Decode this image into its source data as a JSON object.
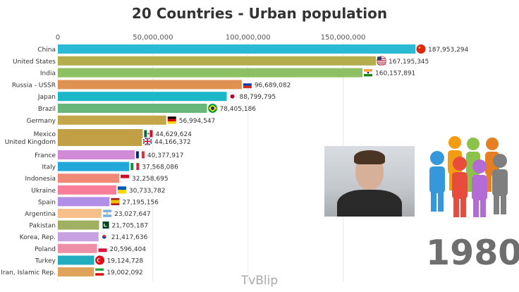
{
  "chart_data": {
    "type": "bar",
    "orientation": "horizontal",
    "title": "20 Countries - Urban population",
    "x_ticks": [
      "0",
      "50,000,000",
      "100,000,000",
      "150,000,000"
    ],
    "x_tick_values": [
      0,
      50000000,
      100000000,
      150000000
    ],
    "xlim": [
      0,
      187953294
    ],
    "grid": true,
    "categories": [
      "China",
      "United States",
      "India",
      "Russia - USSR",
      "Japan",
      "Brazil",
      "Germany",
      "Mexico",
      "United Kingdom",
      "France",
      "Italy",
      "Indonesia",
      "Ukraine",
      "Spain",
      "Argentina",
      "Pakistan",
      "Korea, Rep.",
      "Poland",
      "Turkey",
      "Iran, Islamic Rep."
    ],
    "values": [
      187953294,
      167195345,
      160157891,
      96689082,
      88799795,
      78405186,
      56994547,
      44629624,
      44166372,
      40377917,
      37568086,
      32258695,
      30733782,
      27195156,
      23027647,
      21705187,
      21417636,
      20596404,
      19124728,
      19002092
    ],
    "value_labels": [
      "187,953,294",
      "167,195,345",
      "160,157,891",
      "96,689,082",
      "88,799,795",
      "78,405,186",
      "56,994,547",
      "44,629,624",
      "44,166,372",
      "40,377,917",
      "37,568,086",
      "32,258,695",
      "30,733,782",
      "27,195,156",
      "23,027,647",
      "21,705,187",
      "21,417,636",
      "20,596,404",
      "19,124,728",
      "19,002,092"
    ],
    "colors": [
      "#2bbad3",
      "#b4ad4c",
      "#8dc063",
      "#df9151",
      "#1cb7c8",
      "#68b67a",
      "#c4a64a",
      "#c09f45",
      "#c09f45",
      "#d18ad6",
      "#22a8d8",
      "#ef8a77",
      "#f77d98",
      "#b18fe6",
      "#f7c08a",
      "#9fb060",
      "#c8a2e0",
      "#ee8fa8",
      "#23aec0",
      "#e0a35c"
    ],
    "flags": [
      "china-flag-icon",
      "usa-flag-icon",
      "india-flag-icon",
      "russia-flag-icon",
      "japan-flag-icon",
      "brazil-flag-icon",
      "germany-flag-icon",
      "mexico-flag-icon",
      "uk-flag-icon",
      "france-flag-icon",
      "italy-flag-icon",
      "indonesia-flag-icon",
      "ukraine-flag-icon",
      "spain-flag-icon",
      "argentina-flag-icon",
      "pakistan-flag-icon",
      "korea-flag-icon",
      "poland-flag-icon",
      "turkey-flag-icon",
      "iran-flag-icon"
    ]
  },
  "year": "1980",
  "watermark": "TvBlip"
}
